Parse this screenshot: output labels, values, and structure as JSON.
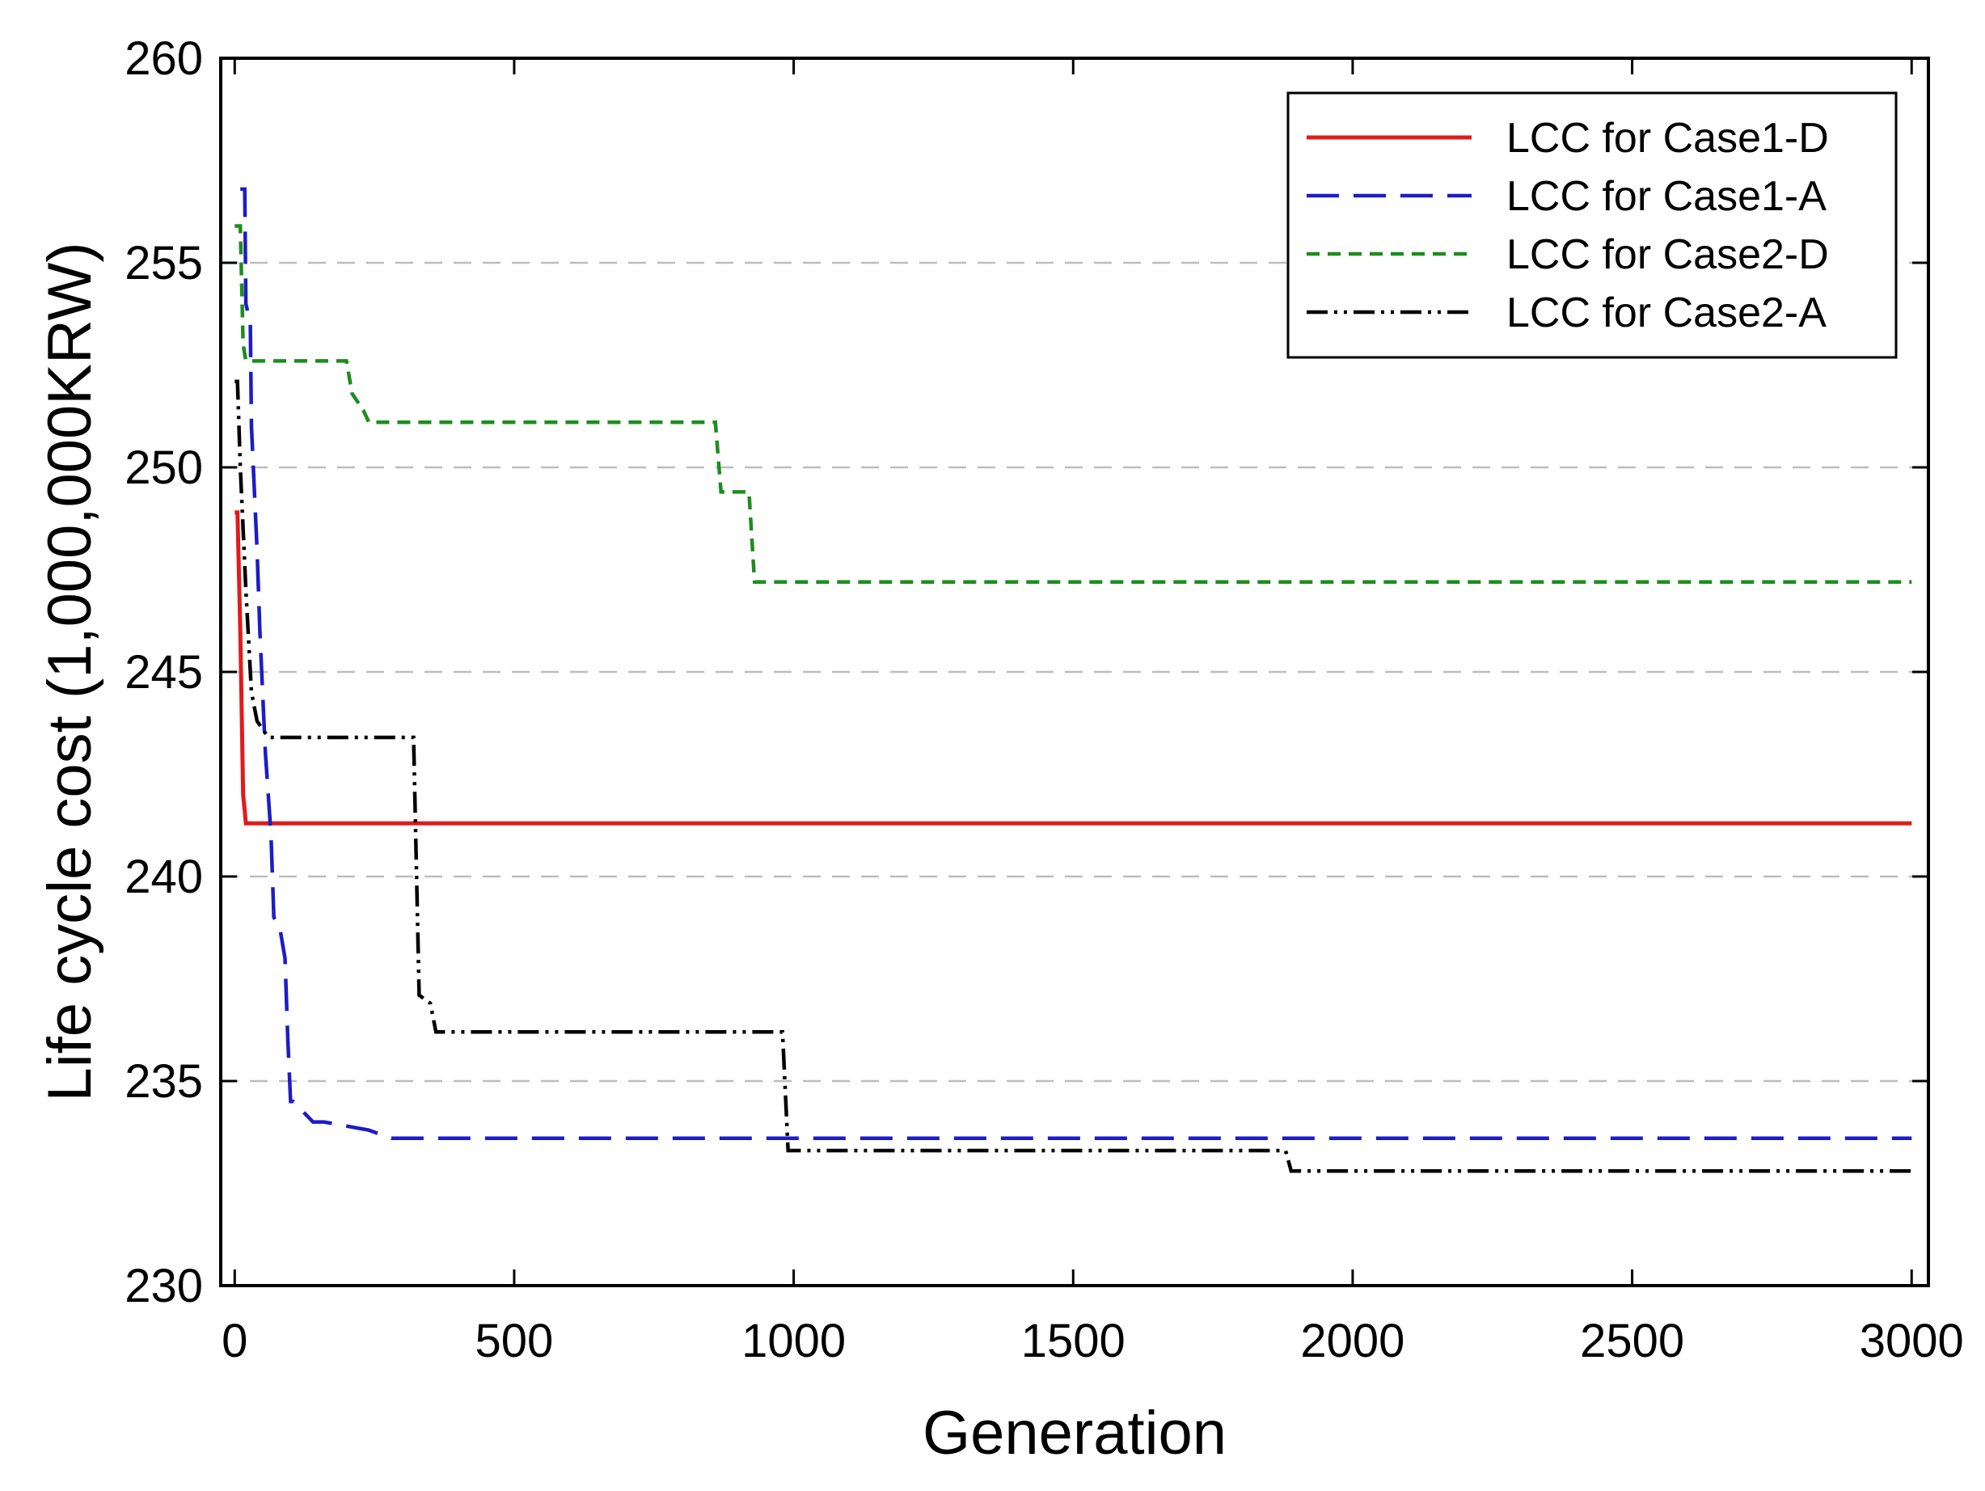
{
  "chart_data": {
    "type": "line",
    "title": "",
    "xlabel": "Generation",
    "ylabel": "Life cycle cost (1,000,000KRW)",
    "xlim": [
      -25,
      3030
    ],
    "ylim": [
      230,
      260
    ],
    "xticks": [
      0,
      500,
      1000,
      1500,
      2000,
      2500,
      3000
    ],
    "yticks": [
      230,
      235,
      240,
      245,
      250,
      255,
      260
    ],
    "xtick_labels": [
      "0",
      "500",
      "1000",
      "1500",
      "2000",
      "2500",
      "3000"
    ],
    "ytick_labels": [
      "230",
      "235",
      "240",
      "245",
      "250",
      "255",
      "260"
    ],
    "grid": "horizontal dashed",
    "legend_position": "top-right",
    "series": [
      {
        "name": "LCC for Case1-D",
        "color": "#e01b1b",
        "style": "solid",
        "x": [
          0,
          5,
          10,
          15,
          18,
          20,
          3000
        ],
        "y": [
          248.9,
          248.9,
          246.0,
          242.0,
          241.6,
          241.3,
          241.3
        ]
      },
      {
        "name": "LCC for Case1-A",
        "color": "#1c1cc8",
        "style": "dashed",
        "x": [
          10,
          18,
          20,
          28,
          30,
          40,
          45,
          50,
          55,
          60,
          65,
          70,
          80,
          90,
          95,
          100,
          105,
          140,
          160,
          240,
          280,
          3000
        ],
        "y": [
          256.8,
          256.8,
          254.0,
          253.5,
          251.0,
          248.0,
          246.0,
          244.5,
          243.0,
          242.0,
          241.0,
          239.0,
          238.8,
          238.0,
          236.0,
          234.5,
          234.5,
          234.0,
          234.0,
          233.8,
          233.6,
          233.6
        ],
        "dash_label": "LCC for Case1-A"
      },
      {
        "name": "LCC for Case2-D",
        "color": "#1e8c1e",
        "style": "dotted-dash",
        "x": [
          0,
          10,
          15,
          20,
          200,
          210,
          230,
          240,
          860,
          870,
          920,
          930,
          3000
        ],
        "y": [
          255.9,
          255.9,
          253.0,
          252.6,
          252.6,
          251.8,
          251.4,
          251.1,
          251.1,
          249.4,
          249.4,
          247.2,
          247.2
        ]
      },
      {
        "name": "LCC for Case2-A",
        "color": "#000000",
        "style": "dash-dot-dot",
        "x": [
          0,
          5,
          10,
          20,
          30,
          40,
          60,
          320,
          330,
          350,
          360,
          980,
          990,
          1880,
          1890,
          3000
        ],
        "y": [
          252.1,
          252.1,
          250.0,
          247.0,
          244.5,
          243.8,
          243.4,
          243.4,
          237.1,
          236.9,
          236.2,
          236.2,
          233.3,
          233.3,
          232.8,
          232.8
        ]
      }
    ]
  }
}
